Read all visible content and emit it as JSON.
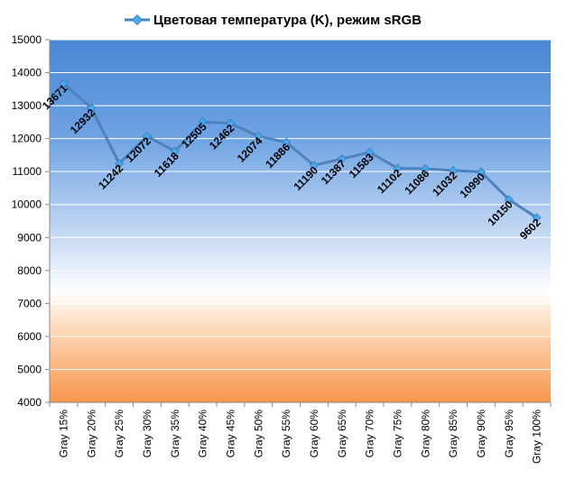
{
  "chart_data": {
    "type": "line",
    "title": "",
    "xlabel": "",
    "ylabel": "",
    "ylim": [
      4000,
      15000
    ],
    "y_ticks": [
      4000,
      5000,
      6000,
      7000,
      8000,
      9000,
      10000,
      11000,
      12000,
      13000,
      14000,
      15000
    ],
    "y_tick_labels": [
      "4000",
      "5000",
      "6000",
      "7000",
      "8000",
      "9000",
      "10000",
      "11000",
      "12000",
      "13000",
      "14000",
      "15000"
    ],
    "grid": true,
    "legend_position": "top",
    "categories": [
      "Gray 15%",
      "Gray 20%",
      "Gray 25%",
      "Gray 30%",
      "Gray 35%",
      "Gray 40%",
      "Gray 45%",
      "Gray 50%",
      "Gray 55%",
      "Gray 60%",
      "Gray 65%",
      "Gray 70%",
      "Gray 75%",
      "Gray 80%",
      "Gray 85%",
      "Gray 90%",
      "Gray 95%",
      "Gray 100%"
    ],
    "series": [
      {
        "name": "Цветовая температура (K), режим sRGB",
        "values": [
          13671,
          12932,
          11242,
          12072,
          11618,
          12505,
          12462,
          12074,
          11886,
          11190,
          11387,
          11583,
          11102,
          11086,
          11032,
          10990,
          10150,
          9602
        ],
        "data_labels": [
          "13671",
          "12932",
          "11242",
          "12072",
          "11618",
          "12505",
          "12462",
          "12074",
          "11886",
          "11190",
          "11387",
          "11583",
          "11102",
          "11086",
          "11032",
          "10990",
          "10150",
          "9602"
        ],
        "line_color": "#4f81bd",
        "marker_color": "#4aa8e8"
      }
    ],
    "colors": {
      "bg_top": "#4f8ad6",
      "bg_mid": "#ffffff",
      "bg_bottom": "#f79646",
      "grid": "#ffffff",
      "axis": "#888888"
    }
  }
}
